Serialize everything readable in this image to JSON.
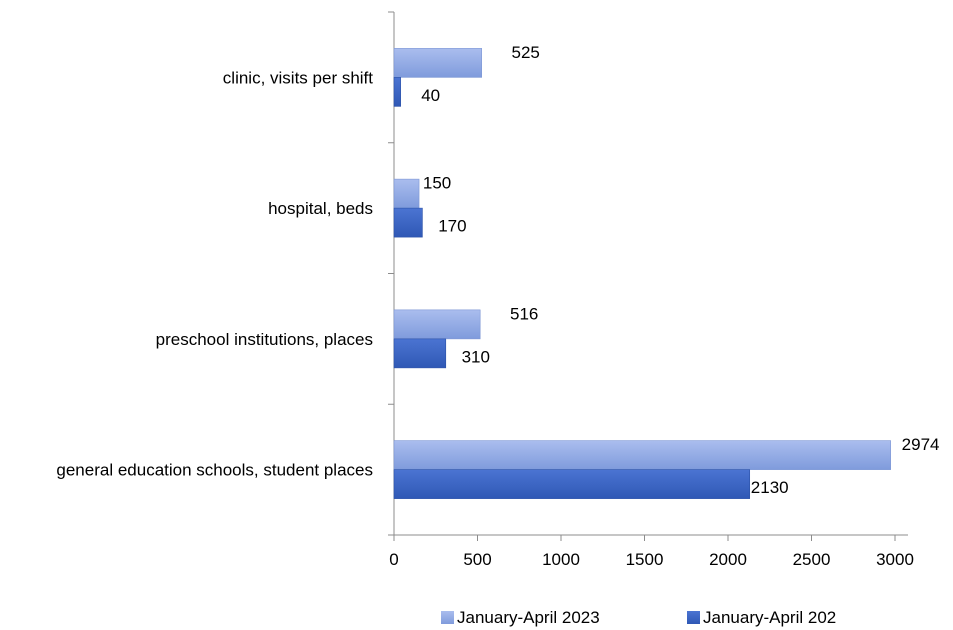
{
  "chart_data": {
    "type": "bar",
    "orientation": "horizontal",
    "categories": [
      "clinic, visits per shift",
      "hospital, beds",
      "preschool institutions, places",
      "general education schools, student places"
    ],
    "series": [
      {
        "name": "January-April 2023",
        "values": [
          525,
          150,
          516,
          2974
        ],
        "labels": [
          "525",
          "150",
          "516",
          "2974"
        ],
        "color": "#8ea7e3"
      },
      {
        "name": "January-April 202",
        "values": [
          40,
          170,
          310,
          2130
        ],
        "labels": [
          "40",
          "170",
          "310",
          "2130"
        ],
        "color": "#3d66c4"
      }
    ],
    "x_ticks": [
      0,
      500,
      1000,
      1500,
      2000,
      2500,
      3000
    ],
    "x_tick_labels": [
      "0",
      "500",
      "1000",
      "1500",
      "2000",
      "2500",
      "3000"
    ],
    "xlim": [
      0,
      3000
    ],
    "title": "",
    "xlabel": "",
    "ylabel": "",
    "grid": false,
    "legend_position": "bottom"
  }
}
